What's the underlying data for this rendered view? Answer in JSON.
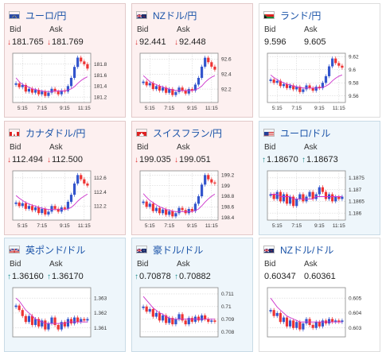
{
  "labels": {
    "bid": "Bid",
    "ask": "Ask"
  },
  "colors": {
    "up": "#1a8a8a",
    "down": "#dd3333",
    "candle_up": "#3355cc",
    "candle_down": "#ee3333",
    "ma": "#cc33cc",
    "link": "#1a53a8"
  },
  "cards": [
    {
      "id": "eurjpy",
      "pair": "ユーロ/円",
      "flag": "eu-flag",
      "theme": "pink",
      "bid": "181.765",
      "ask": "181.769",
      "bid_dir": "down",
      "ask_dir": "down",
      "chart_data": {
        "type": "candlestick",
        "x_ticks": [
          "5:15",
          "7:15",
          "9:15",
          "11:15"
        ],
        "y_ticks": [
          "181.8",
          "181.6",
          "181.4",
          "181.2"
        ],
        "ylim": [
          181.1,
          182.0
        ],
        "close": [
          181.45,
          181.38,
          181.42,
          181.3,
          181.35,
          181.28,
          181.33,
          181.25,
          181.3,
          181.22,
          181.28,
          181.35,
          181.3,
          181.25,
          181.32,
          181.3,
          181.4,
          181.55,
          181.75,
          181.92,
          181.85,
          181.8,
          181.72
        ],
        "ma": [
          181.55,
          181.48,
          181.43,
          181.4,
          181.38,
          181.35,
          181.34,
          181.32,
          181.31,
          181.3,
          181.3,
          181.3,
          181.31,
          181.31,
          181.31,
          181.31,
          181.33,
          181.35,
          181.39,
          181.45,
          181.5,
          181.54,
          181.57
        ]
      }
    },
    {
      "id": "nzdjpy",
      "pair": "NZドル/円",
      "flag": "nz-flag",
      "theme": "pink",
      "bid": "92.441",
      "ask": "92.448",
      "bid_dir": "down",
      "ask_dir": "down",
      "chart_data": {
        "type": "candlestick",
        "x_ticks": [
          "5:15",
          "7:15",
          "9:15",
          "11:15"
        ],
        "y_ticks": [
          "92.6",
          "92.4",
          "92.2"
        ],
        "ylim": [
          92.02,
          92.68
        ],
        "close": [
          92.3,
          92.25,
          92.28,
          92.2,
          92.24,
          92.18,
          92.22,
          92.15,
          92.2,
          92.12,
          92.16,
          92.22,
          92.18,
          92.14,
          92.2,
          92.18,
          92.26,
          92.35,
          92.5,
          92.62,
          92.56,
          92.5,
          92.46
        ],
        "ma": [
          92.38,
          92.34,
          92.3,
          92.28,
          92.26,
          92.24,
          92.23,
          92.21,
          92.2,
          92.19,
          92.18,
          92.18,
          92.18,
          92.18,
          92.18,
          92.18,
          92.19,
          92.21,
          92.24,
          92.29,
          92.33,
          92.36,
          92.38
        ]
      }
    },
    {
      "id": "zarjpy",
      "pair": "ランド/円",
      "flag": "za-flag",
      "theme": "white",
      "bid": "9.596",
      "ask": "9.605",
      "bid_dir": "none",
      "ask_dir": "none",
      "chart_data": {
        "type": "candlestick",
        "x_ticks": [
          "5:15",
          "7:15",
          "9:15",
          "11:15"
        ],
        "y_ticks": [
          "9.62",
          "9.6",
          "9.58",
          "9.56"
        ],
        "ylim": [
          9.55,
          9.625
        ],
        "close": [
          9.585,
          9.58,
          9.583,
          9.575,
          9.578,
          9.572,
          9.576,
          9.57,
          9.574,
          9.566,
          9.57,
          9.576,
          9.572,
          9.568,
          9.574,
          9.572,
          9.58,
          9.59,
          9.605,
          9.617,
          9.61,
          9.606,
          9.603
        ],
        "ma": [
          9.592,
          9.588,
          9.585,
          9.582,
          9.58,
          9.578,
          9.577,
          9.575,
          9.574,
          9.573,
          9.572,
          9.572,
          9.572,
          9.572,
          9.572,
          9.572,
          9.573,
          9.575,
          9.578,
          9.583,
          9.587,
          9.59,
          9.592
        ]
      }
    },
    {
      "id": "cadjpy",
      "pair": "カナダドル/円",
      "flag": "ca-flag",
      "theme": "pink",
      "bid": "112.494",
      "ask": "112.500",
      "bid_dir": "down",
      "ask_dir": "down",
      "chart_data": {
        "type": "candlestick",
        "x_ticks": [
          "5:15",
          "7:15",
          "9:15",
          "11:15"
        ],
        "y_ticks": [
          "112.6",
          "112.4",
          "112.2"
        ],
        "ylim": [
          112.0,
          112.7
        ],
        "close": [
          112.25,
          112.2,
          112.24,
          112.16,
          112.2,
          112.14,
          112.18,
          112.1,
          112.16,
          112.08,
          112.12,
          112.2,
          112.16,
          112.12,
          112.18,
          112.16,
          112.26,
          112.36,
          112.52,
          112.64,
          112.58,
          112.52,
          112.49
        ],
        "ma": [
          112.35,
          112.31,
          112.28,
          112.25,
          112.23,
          112.21,
          112.2,
          112.18,
          112.17,
          112.16,
          112.15,
          112.15,
          112.15,
          112.15,
          112.15,
          112.15,
          112.16,
          112.18,
          112.22,
          112.27,
          112.31,
          112.34,
          112.37
        ]
      }
    },
    {
      "id": "chfjpy",
      "pair": "スイスフラン/円",
      "flag": "ch-flag",
      "theme": "pink",
      "bid": "199.035",
      "ask": "199.051",
      "bid_dir": "down",
      "ask_dir": "down",
      "chart_data": {
        "type": "candlestick",
        "x_ticks": [
          "5:15",
          "7:15",
          "9:15",
          "11:15"
        ],
        "y_ticks": [
          "199.2",
          "199",
          "198.8",
          "198.6",
          "198.4"
        ],
        "ylim": [
          198.35,
          199.28
        ],
        "close": [
          198.7,
          198.6,
          198.66,
          198.52,
          198.58,
          198.48,
          198.55,
          198.45,
          198.52,
          198.42,
          198.48,
          198.58,
          198.54,
          198.48,
          198.56,
          198.52,
          198.66,
          198.8,
          199.02,
          199.2,
          199.12,
          199.06,
          199.04
        ],
        "ma": [
          198.85,
          198.78,
          198.72,
          198.68,
          198.64,
          198.6,
          198.58,
          198.55,
          198.54,
          198.52,
          198.51,
          198.51,
          198.51,
          198.51,
          198.51,
          198.51,
          198.53,
          198.56,
          198.62,
          198.69,
          198.75,
          198.8,
          198.84
        ]
      }
    },
    {
      "id": "eurusd",
      "pair": "ユーロ/ドル",
      "flag": "us-flag",
      "theme": "blue",
      "bid": "1.18670",
      "ask": "1.18673",
      "bid_dir": "up",
      "ask_dir": "up",
      "chart_data": {
        "type": "candlestick",
        "x_ticks": [
          "5:15",
          "7:15",
          "9:15",
          "11:15"
        ],
        "y_ticks": [
          "1.1875",
          "1.187",
          "1.1865",
          "1.186"
        ],
        "ylim": [
          1.1857,
          1.1878
        ],
        "close": [
          1.1868,
          1.1866,
          1.1869,
          1.1865,
          1.1868,
          1.1864,
          1.1867,
          1.1863,
          1.1866,
          1.1868,
          1.1865,
          1.1867,
          1.1869,
          1.1866,
          1.1868,
          1.1871,
          1.1869,
          1.1866,
          1.1868,
          1.1865,
          1.1867,
          1.1866,
          1.1867
        ],
        "ma": [
          1.1868,
          1.1868,
          1.1868,
          1.1867,
          1.1867,
          1.1867,
          1.1867,
          1.1866,
          1.1866,
          1.1866,
          1.1866,
          1.1866,
          1.1866,
          1.1866,
          1.1867,
          1.1867,
          1.1867,
          1.1867,
          1.1867,
          1.1867,
          1.1867,
          1.1867,
          1.1867
        ]
      }
    },
    {
      "id": "gbpusd",
      "pair": "英ポンド/ドル",
      "flag": "uk-flag",
      "theme": "blue",
      "bid": "1.36160",
      "ask": "1.36170",
      "bid_dir": "up",
      "ask_dir": "up",
      "chart_data": {
        "type": "candlestick",
        "x_ticks": [],
        "y_ticks": [
          "1.363",
          "1.362",
          "1.361"
        ],
        "ylim": [
          1.3604,
          1.3637
        ],
        "close": [
          1.3625,
          1.3622,
          1.3618,
          1.3614,
          1.3618,
          1.3612,
          1.3616,
          1.3611,
          1.3615,
          1.3609,
          1.3613,
          1.3617,
          1.3612,
          1.3609,
          1.3614,
          1.3611,
          1.3616,
          1.3613,
          1.3617,
          1.3614,
          1.3616,
          1.3615,
          1.3616
        ],
        "ma": [
          1.363,
          1.3628,
          1.3625,
          1.3622,
          1.362,
          1.3618,
          1.3616,
          1.3615,
          1.3614,
          1.3613,
          1.3613,
          1.3613,
          1.3613,
          1.3613,
          1.3613,
          1.3613,
          1.3614,
          1.3614,
          1.3614,
          1.3614,
          1.3614,
          1.3614,
          1.3614
        ]
      }
    },
    {
      "id": "audusd",
      "pair": "豪ドル/ドル",
      "flag": "au-flag",
      "theme": "blue",
      "bid": "0.70878",
      "ask": "0.70882",
      "bid_dir": "up",
      "ask_dir": "up",
      "chart_data": {
        "type": "candlestick",
        "x_ticks": [],
        "y_ticks": [
          "0.711",
          "0.71",
          "0.709",
          "0.708"
        ],
        "ylim": [
          0.7076,
          0.7115
        ],
        "close": [
          0.71,
          0.7096,
          0.7098,
          0.7092,
          0.7095,
          0.7089,
          0.7093,
          0.7087,
          0.7091,
          0.7086,
          0.709,
          0.7094,
          0.7089,
          0.7086,
          0.7091,
          0.7088,
          0.7092,
          0.7089,
          0.7093,
          0.709,
          0.7088,
          0.7089,
          0.7088
        ],
        "ma": [
          0.7108,
          0.7105,
          0.7102,
          0.7099,
          0.7097,
          0.7095,
          0.7094,
          0.7092,
          0.7091,
          0.709,
          0.709,
          0.709,
          0.709,
          0.709,
          0.709,
          0.709,
          0.709,
          0.709,
          0.709,
          0.709,
          0.709,
          0.709,
          0.709
        ]
      }
    },
    {
      "id": "nzdusd",
      "pair": "NZドル/ドル",
      "flag": "nz-flag",
      "theme": "white",
      "bid": "0.60347",
      "ask": "0.60361",
      "bid_dir": "none",
      "ask_dir": "none",
      "chart_data": {
        "type": "candlestick",
        "x_ticks": [],
        "y_ticks": [
          "0.605",
          "0.604",
          "0.603"
        ],
        "ylim": [
          0.6024,
          0.6057
        ],
        "close": [
          0.6042,
          0.6038,
          0.604,
          0.6034,
          0.6037,
          0.6031,
          0.6035,
          0.603,
          0.6034,
          0.6029,
          0.6033,
          0.6036,
          0.6032,
          0.603,
          0.6034,
          0.6031,
          0.6035,
          0.6033,
          0.6036,
          0.6034,
          0.6035,
          0.6034,
          0.6035
        ],
        "ma": [
          0.605,
          0.6047,
          0.6044,
          0.6042,
          0.604,
          0.6038,
          0.6037,
          0.6036,
          0.6035,
          0.6034,
          0.6034,
          0.6034,
          0.6034,
          0.6034,
          0.6034,
          0.6034,
          0.6034,
          0.6034,
          0.6034,
          0.6034,
          0.6034,
          0.6034,
          0.6034
        ]
      }
    }
  ]
}
